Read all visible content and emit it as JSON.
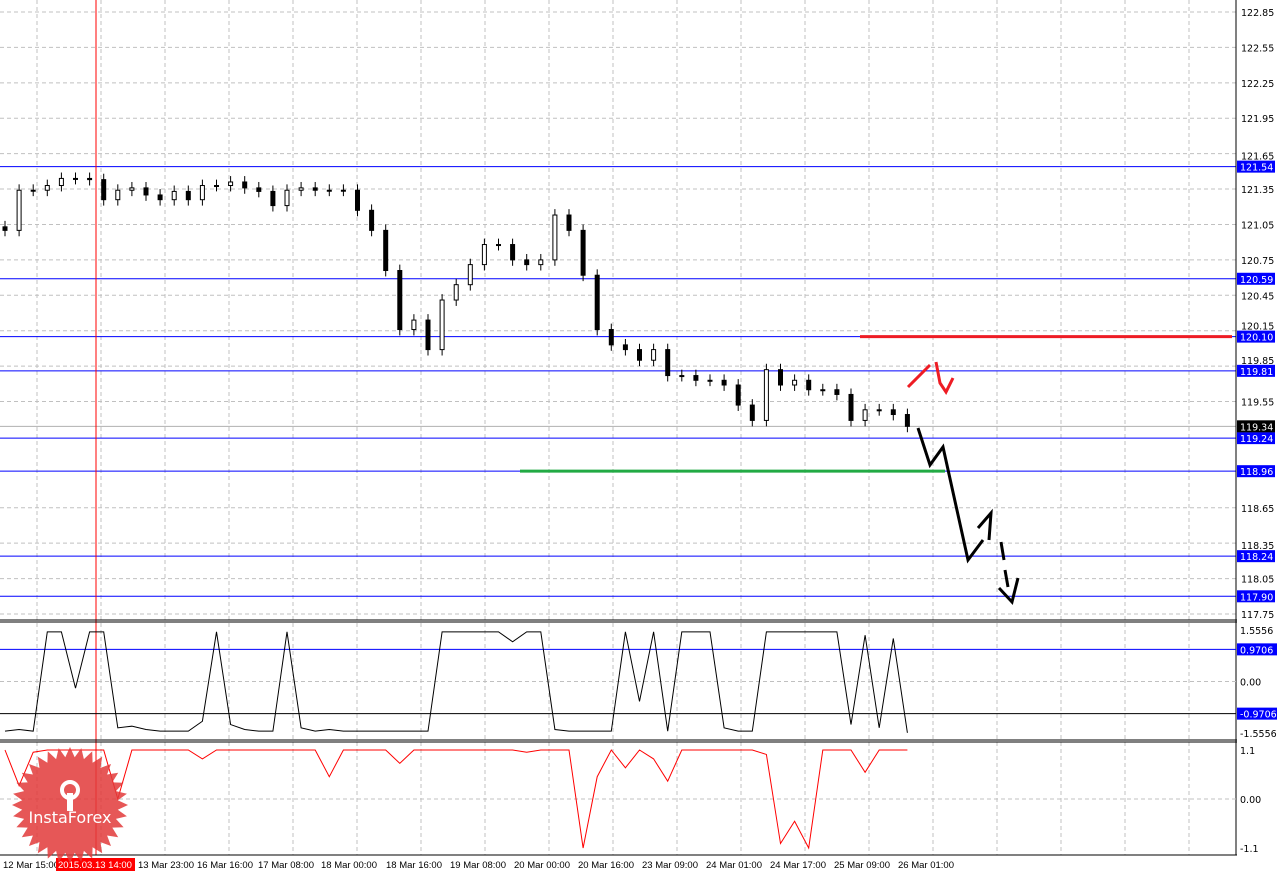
{
  "chart_data": {
    "type": "candlestick",
    "symbol_hidden": true,
    "price_axis": {
      "ticks": [
        "122.85",
        "122.55",
        "122.25",
        "121.95",
        "121.65",
        "121.35",
        "121.05",
        "120.75",
        "120.45",
        "120.15",
        "119.85",
        "119.55",
        "118.65",
        "118.35",
        "118.05",
        "117.75"
      ],
      "range": [
        117.75,
        122.85
      ]
    },
    "time_axis": {
      "labels": [
        "12 Mar 15:00",
        "2015.03.13 14:00",
        "13 Mar 23:00",
        "16 Mar 16:00",
        "17 Mar 08:00",
        "18 Mar 00:00",
        "18 Mar 16:00",
        "19 Mar 08:00",
        "20 Mar 00:00",
        "20 Mar 16:00",
        "23 Mar 09:00",
        "24 Mar 01:00",
        "24 Mar 17:00",
        "25 Mar 09:00",
        "26 Mar 01:00"
      ],
      "crosshair_label": "2015.03.13 14:00"
    },
    "closes": [
      121.0,
      121.34,
      121.34,
      121.38,
      121.44,
      121.44,
      121.43,
      121.26,
      121.34,
      121.36,
      121.3,
      121.26,
      121.33,
      121.26,
      121.38,
      121.38,
      121.41,
      121.36,
      121.33,
      121.21,
      121.34,
      121.36,
      121.34,
      121.34,
      121.34,
      121.17,
      121.0,
      120.66,
      120.16,
      120.24,
      119.99,
      120.41,
      120.54,
      120.71,
      120.88,
      120.88,
      120.75,
      120.71,
      120.75,
      121.13,
      121.0,
      120.62,
      120.16,
      120.03,
      119.99,
      119.9,
      119.99,
      119.77,
      119.77,
      119.73,
      119.73,
      119.69,
      119.52,
      119.39,
      119.82,
      119.69,
      119.73,
      119.65,
      119.65,
      119.61,
      119.39,
      119.48,
      119.48,
      119.44,
      119.34
    ],
    "current_price": "119.34",
    "levels": [
      {
        "label": "121.54",
        "value": 121.54,
        "color": "#0000ff"
      },
      {
        "label": "120.59",
        "value": 120.59,
        "color": "#0000ff"
      },
      {
        "label": "120.10",
        "value": 120.1,
        "color": "#0000ff"
      },
      {
        "label": "119.81",
        "value": 119.81,
        "color": "#0000ff"
      },
      {
        "label": "119.24",
        "value": 119.24,
        "color": "#0000ff"
      },
      {
        "label": "118.96",
        "value": 118.96,
        "color": "#0000ff"
      },
      {
        "label": "118.24",
        "value": 118.24,
        "color": "#0000ff"
      },
      {
        "label": "117.90",
        "value": 117.9,
        "color": "#0000ff"
      }
    ],
    "resistance_color": "#ee1c24",
    "support_color": "#22aa44",
    "grid": true,
    "indicator1": {
      "ticks": [
        "1.5556",
        "0.00",
        "-1.5556"
      ],
      "levels": [
        "0.9706",
        "-0.9706"
      ],
      "range": [
        -1.5556,
        1.5556
      ],
      "color": "#000000",
      "values": [
        -1.5,
        -1.45,
        -1.5,
        1.5,
        1.5,
        -0.2,
        1.5,
        1.5,
        -1.4,
        -1.35,
        -1.45,
        -1.5,
        -1.5,
        -1.5,
        -1.2,
        1.5,
        -1.3,
        -1.45,
        -1.5,
        -1.5,
        1.5,
        -1.4,
        -1.5,
        -1.45,
        -1.5,
        -1.5,
        -1.5,
        -1.5,
        -1.5,
        -1.5,
        -1.5,
        1.5,
        1.5,
        1.5,
        1.5,
        1.5,
        1.2,
        1.5,
        1.5,
        -1.45,
        -1.5,
        -1.5,
        -1.5,
        -1.5,
        1.5,
        -0.6,
        1.5,
        -1.5,
        1.5,
        1.5,
        1.5,
        -1.4,
        -1.5,
        -1.5,
        1.5,
        1.5,
        1.5,
        1.5,
        1.5,
        1.5,
        -1.3,
        1.4,
        -1.4,
        1.3,
        -1.55
      ]
    },
    "indicator2": {
      "ticks": [
        "1.1",
        "0.00",
        "-1.1"
      ],
      "range": [
        -1.1,
        1.1
      ],
      "color": "#ff0000",
      "values": [
        1.1,
        0.3,
        1.05,
        1.1,
        1.1,
        1.1,
        1.1,
        1.1,
        0.0,
        1.1,
        1.1,
        1.1,
        1.1,
        1.1,
        0.9,
        1.1,
        1.1,
        1.1,
        1.1,
        1.1,
        1.1,
        1.1,
        1.1,
        0.5,
        1.1,
        1.1,
        1.1,
        1.1,
        0.8,
        1.1,
        1.1,
        1.1,
        1.1,
        1.1,
        1.1,
        1.1,
        1.1,
        1.05,
        1.1,
        1.1,
        1.1,
        -1.1,
        0.5,
        1.1,
        0.7,
        1.1,
        0.9,
        0.4,
        1.1,
        1.1,
        1.1,
        1.1,
        1.1,
        1.1,
        1.0,
        -1.0,
        -0.5,
        -1.1,
        1.1,
        1.1,
        1.1,
        0.6,
        1.1,
        1.1,
        1.1
      ]
    }
  },
  "watermark": {
    "brand": "InstaForex"
  }
}
